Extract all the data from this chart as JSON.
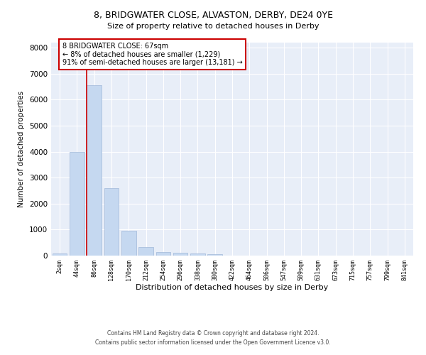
{
  "title": "8, BRIDGWATER CLOSE, ALVASTON, DERBY, DE24 0YE",
  "subtitle": "Size of property relative to detached houses in Derby",
  "xlabel": "Distribution of detached houses by size in Derby",
  "ylabel": "Number of detached properties",
  "categories": [
    "2sqm",
    "44sqm",
    "86sqm",
    "128sqm",
    "170sqm",
    "212sqm",
    "254sqm",
    "296sqm",
    "338sqm",
    "380sqm",
    "422sqm",
    "464sqm",
    "506sqm",
    "547sqm",
    "589sqm",
    "631sqm",
    "673sqm",
    "715sqm",
    "757sqm",
    "799sqm",
    "841sqm"
  ],
  "values": [
    80,
    4000,
    6550,
    2600,
    950,
    330,
    140,
    110,
    70,
    60,
    0,
    0,
    0,
    0,
    0,
    0,
    0,
    0,
    0,
    0,
    0
  ],
  "bar_color": "#c5d8f0",
  "bar_edge_color": "#a0b8d8",
  "vline_color": "#cc0000",
  "annotation_text": "8 BRIDGWATER CLOSE: 67sqm\n← 8% of detached houses are smaller (1,229)\n91% of semi-detached houses are larger (13,181) →",
  "annotation_box_color": "#cc0000",
  "ylim": [
    0,
    8200
  ],
  "yticks": [
    0,
    1000,
    2000,
    3000,
    4000,
    5000,
    6000,
    7000,
    8000
  ],
  "background_color": "#e8eef8",
  "footer_line1": "Contains HM Land Registry data © Crown copyright and database right 2024.",
  "footer_line2": "Contains public sector information licensed under the Open Government Licence v3.0."
}
